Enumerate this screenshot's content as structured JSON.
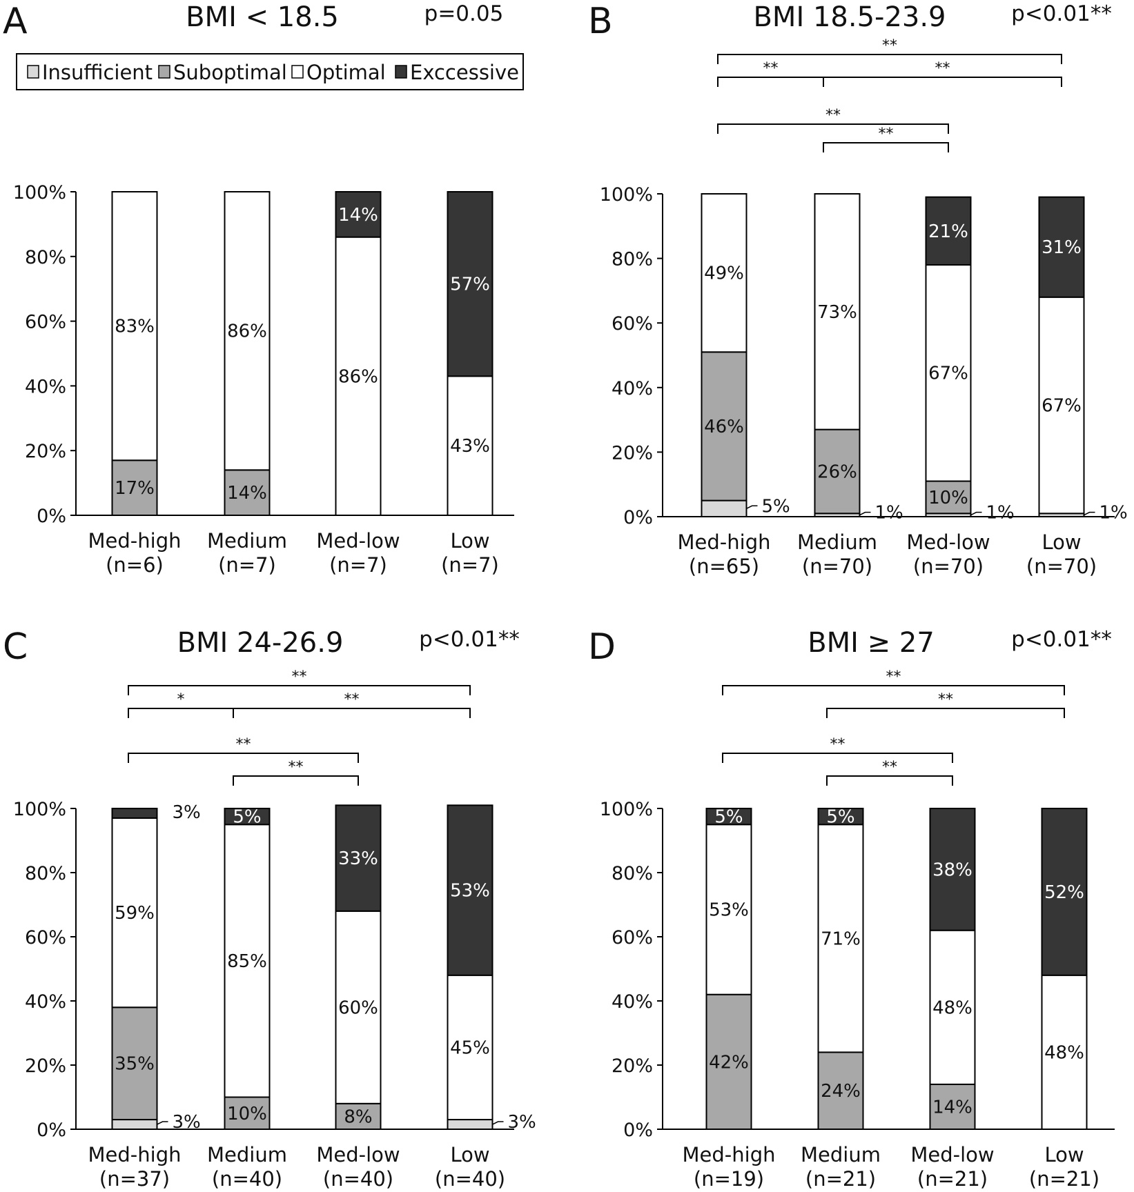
{
  "legend": [
    {
      "key": "insufficient",
      "label": "Insufficient",
      "color": "#d9d9d9"
    },
    {
      "key": "suboptimal",
      "label": "Suboptimal",
      "color": "#a8a8a8"
    },
    {
      "key": "optimal",
      "label": "Optimal",
      "color": "#ffffff"
    },
    {
      "key": "excessive",
      "label": "Exccessive",
      "color": "#363636"
    }
  ],
  "chart_data": [
    {
      "panel": "A",
      "title": "BMI < 18.5",
      "pvalue": "p=0.05",
      "type": "bar",
      "stacked": true,
      "categories": [
        "Med-high",
        "Medium",
        "Med-low",
        "Low"
      ],
      "n_labels": [
        "(n=6)",
        "(n=7)",
        "(n=7)",
        "(n=7)"
      ],
      "yticks": [
        "0%",
        "20%",
        "40%",
        "60%",
        "80%",
        "100%"
      ],
      "ylim": [
        0,
        100
      ],
      "series": [
        {
          "name": "Insufficient",
          "values": [
            0,
            0,
            0,
            0
          ],
          "labels": [
            "",
            "",
            "",
            ""
          ]
        },
        {
          "name": "Suboptimal",
          "values": [
            17,
            14,
            0,
            0
          ],
          "labels": [
            "17%",
            "14%",
            "",
            ""
          ]
        },
        {
          "name": "Optimal",
          "values": [
            83,
            86,
            86,
            43
          ],
          "labels": [
            "83%",
            "86%",
            "86%",
            "43%"
          ]
        },
        {
          "name": "Exccessive",
          "values": [
            0,
            0,
            14,
            57
          ],
          "labels": [
            "",
            "",
            "14%",
            "57%"
          ]
        }
      ],
      "comparisons": []
    },
    {
      "panel": "B",
      "title": "BMI 18.5-23.9",
      "pvalue": "p<0.01**",
      "type": "bar",
      "stacked": true,
      "categories": [
        "Med-high",
        "Medium",
        "Med-low",
        "Low"
      ],
      "n_labels": [
        "(n=65)",
        "(n=70)",
        "(n=70)",
        "(n=70)"
      ],
      "yticks": [
        "0%",
        "20%",
        "40%",
        "60%",
        "80%",
        "100%"
      ],
      "ylim": [
        0,
        100
      ],
      "series": [
        {
          "name": "Insufficient",
          "values": [
            5,
            1,
            1,
            1
          ],
          "labels": [
            "5%",
            "1%",
            "1%",
            "1%"
          ],
          "outside": true
        },
        {
          "name": "Suboptimal",
          "values": [
            46,
            26,
            10,
            0
          ],
          "labels": [
            "46%",
            "26%",
            "10%",
            ""
          ]
        },
        {
          "name": "Optimal",
          "values": [
            49,
            73,
            67,
            67
          ],
          "labels": [
            "49%",
            "73%",
            "67%",
            "67%"
          ]
        },
        {
          "name": "Exccessive",
          "values": [
            0,
            0,
            21,
            31
          ],
          "labels": [
            "",
            "",
            "21%",
            "31%"
          ]
        }
      ],
      "comparisons": [
        {
          "from": 0,
          "to": 3,
          "level": 4,
          "label": "**"
        },
        {
          "from": 0,
          "to": 1,
          "level": 3,
          "label": "**"
        },
        {
          "from": 1,
          "to": 3,
          "level": 3,
          "label": "**"
        },
        {
          "from": 0,
          "to": 2,
          "level": 2,
          "label": "**"
        },
        {
          "from": 1,
          "to": 2,
          "level": 1,
          "label": "**"
        }
      ]
    },
    {
      "panel": "C",
      "title": "BMI 24-26.9",
      "pvalue": "p<0.01**",
      "type": "bar",
      "stacked": true,
      "categories": [
        "Med-high",
        "Medium",
        "Med-low",
        "Low"
      ],
      "n_labels": [
        "(n=37)",
        "(n=40)",
        "(n=40)",
        "(n=40)"
      ],
      "yticks": [
        "0%",
        "20%",
        "40%",
        "60%",
        "80%",
        "100%"
      ],
      "ylim": [
        0,
        100
      ],
      "series": [
        {
          "name": "Insufficient",
          "values": [
            3,
            0,
            0,
            3
          ],
          "labels": [
            "3%",
            "",
            "",
            "3%"
          ],
          "outside": true
        },
        {
          "name": "Suboptimal",
          "values": [
            35,
            10,
            8,
            0
          ],
          "labels": [
            "35%",
            "10%",
            "8%",
            ""
          ]
        },
        {
          "name": "Optimal",
          "values": [
            59,
            85,
            60,
            45
          ],
          "labels": [
            "59%",
            "85%",
            "60%",
            "45%"
          ]
        },
        {
          "name": "Exccessive",
          "values": [
            3,
            5,
            33,
            53
          ],
          "labels": [
            "3%",
            "5%",
            "33%",
            "53%"
          ]
        }
      ],
      "comparisons": [
        {
          "from": 0,
          "to": 3,
          "level": 4,
          "label": "**"
        },
        {
          "from": 0,
          "to": 1,
          "level": 3,
          "label": "*"
        },
        {
          "from": 1,
          "to": 3,
          "level": 3,
          "label": "**"
        },
        {
          "from": 0,
          "to": 2,
          "level": 2,
          "label": "**"
        },
        {
          "from": 1,
          "to": 2,
          "level": 1,
          "label": "**"
        }
      ]
    },
    {
      "panel": "D",
      "title": "BMI ≥ 27",
      "pvalue": "p<0.01**",
      "type": "bar",
      "stacked": true,
      "categories": [
        "Med-high",
        "Medium",
        "Med-low",
        "Low"
      ],
      "n_labels": [
        "(n=19)",
        "(n=21)",
        "(n=21)",
        "(n=21)"
      ],
      "yticks": [
        "0%",
        "20%",
        "40%",
        "60%",
        "80%",
        "100%"
      ],
      "ylim": [
        0,
        100
      ],
      "series": [
        {
          "name": "Insufficient",
          "values": [
            0,
            0,
            0,
            0
          ],
          "labels": [
            "",
            "",
            "",
            ""
          ]
        },
        {
          "name": "Suboptimal",
          "values": [
            42,
            24,
            14,
            0
          ],
          "labels": [
            "42%",
            "24%",
            "14%",
            ""
          ]
        },
        {
          "name": "Optimal",
          "values": [
            53,
            71,
            48,
            48
          ],
          "labels": [
            "53%",
            "71%",
            "48%",
            "48%"
          ]
        },
        {
          "name": "Exccessive",
          "values": [
            5,
            5,
            38,
            52
          ],
          "labels": [
            "5%",
            "5%",
            "38%",
            "52%"
          ]
        }
      ],
      "comparisons": [
        {
          "from": 0,
          "to": 3,
          "level": 4,
          "label": "**"
        },
        {
          "from": 1,
          "to": 3,
          "level": 3,
          "label": "**"
        },
        {
          "from": 0,
          "to": 2,
          "level": 2,
          "label": "**"
        },
        {
          "from": 1,
          "to": 2,
          "level": 1,
          "label": "**"
        }
      ]
    }
  ]
}
